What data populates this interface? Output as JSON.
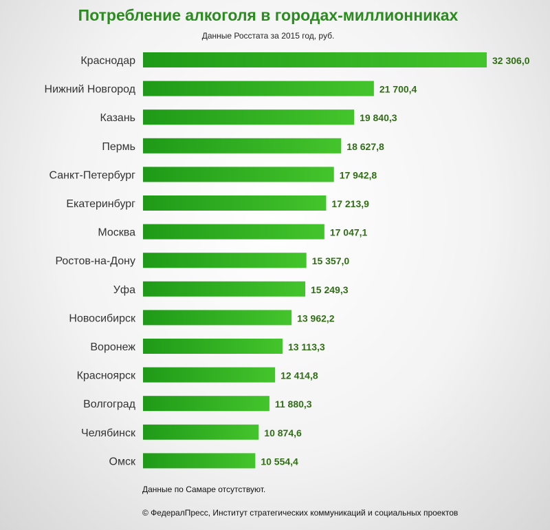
{
  "header": {
    "title": "Потребление алкоголя в городах-миллионниках",
    "subtitle": "Данные Росстата за 2015 год, руб."
  },
  "footer": {
    "note": "Данные по Самаре отсутствуют.",
    "copyright": "© ФедералПресс, Институт стратегических коммуникаций и социальных проектов"
  },
  "colors": {
    "bar_light": "#44c42c",
    "bar_dark": "#1f9a18",
    "title": "#2a8c1e",
    "value_label": "#2f6e14"
  },
  "chart_data": {
    "type": "bar",
    "orientation": "horizontal",
    "title": "Потребление алкоголя в городах-миллионниках",
    "subtitle": "Данные Росстата за 2015 год, руб.",
    "categories": [
      "Краснодар",
      "Нижний Новгород",
      "Казань",
      "Пермь",
      "Санкт-Петербург",
      "Екатеринбург",
      "Москва",
      "Ростов-на-Дону",
      "Уфа",
      "Новосибирск",
      "Воронеж",
      "Красноярск",
      "Волгоград",
      "Челябинск",
      "Омск"
    ],
    "values": [
      32306.0,
      21700.4,
      19840.3,
      18627.8,
      17942.8,
      17213.9,
      17047.1,
      15357.0,
      15249.3,
      13962.2,
      13113.3,
      12414.8,
      11880.3,
      10874.6,
      10554.4
    ],
    "value_labels": [
      "32 306,0",
      "21 700,4",
      "19 840,3",
      "18 627,8",
      "17 942,8",
      "17 213,9",
      "17 047,1",
      "15 357,0",
      "15 249,3",
      "13 962,2",
      "13 113,3",
      "12 414,8",
      "11 880,3",
      "10 874,6",
      "10 554,4"
    ],
    "xlim": [
      0,
      32306.0
    ],
    "grid": false,
    "legend": "none"
  }
}
